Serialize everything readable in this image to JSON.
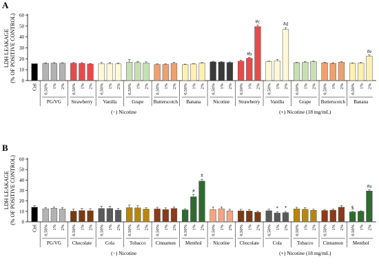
{
  "chart_data": [
    {
      "panel": "A",
      "type": "bar",
      "ylabel": [
        "LDH LEAKAGE",
        "(% OF POSITIVE CONTROL)"
      ],
      "ylim": [
        0,
        60
      ],
      "yticks": [
        0,
        10,
        20,
        30,
        40,
        50,
        60
      ],
      "grid": false,
      "groups": [
        {
          "label": "Ctrl",
          "color": "#000000",
          "doses": [
            ""
          ],
          "values": [
            15.5
          ],
          "errors": [
            0
          ],
          "annotations": [
            ""
          ]
        },
        {
          "label": "PG/VG",
          "color": "#b3b3b3",
          "doses": [
            "0.50%",
            "1%",
            "2%"
          ],
          "values": [
            15.8,
            15.9,
            15.9
          ],
          "errors": [
            0.5,
            0.5,
            0.5
          ],
          "annotations": [
            "",
            "",
            ""
          ]
        },
        {
          "label": "Strawberry",
          "color": "#e84a4a",
          "doses": [
            "0.50%",
            "1%",
            "2%"
          ],
          "values": [
            16.0,
            15.8,
            15.2
          ],
          "errors": [
            0.5,
            0.6,
            0.5
          ],
          "annotations": [
            "",
            "",
            ""
          ]
        },
        {
          "label": "Vanilla",
          "color": "#fff8d8",
          "doses": [
            "0.50%",
            "1%",
            "2%"
          ],
          "values": [
            15.4,
            15.5,
            15.3
          ],
          "errors": [
            1.2,
            1.0,
            0.8
          ],
          "annotations": [
            "",
            "",
            ""
          ]
        },
        {
          "label": "Grape",
          "color": "#c6e0b4",
          "doses": [
            "0.50%",
            "1%",
            "2%"
          ],
          "values": [
            16.8,
            16.5,
            16.2
          ],
          "errors": [
            2.5,
            1.0,
            1.0
          ],
          "annotations": [
            "",
            "",
            ""
          ]
        },
        {
          "label": "Butterscotch",
          "color": "#f0a070",
          "doses": [
            "0.50%",
            "1%",
            "2%"
          ],
          "values": [
            14.8,
            14.8,
            15.8
          ],
          "errors": [
            0.5,
            0.5,
            0.8
          ],
          "annotations": [
            "",
            "",
            ""
          ]
        },
        {
          "label": "Banana",
          "color": "#fdf0b0",
          "doses": [
            "0.50%",
            "1%",
            "2%"
          ],
          "values": [
            14.6,
            15.2,
            16.0
          ],
          "errors": [
            0.5,
            0.5,
            0.5
          ],
          "annotations": [
            "",
            "",
            ""
          ]
        },
        {
          "label": "Nicotine",
          "color": "#3a3a3a",
          "doses": [
            "0.50%",
            "1%",
            "2%"
          ],
          "values": [
            17.2,
            17.0,
            16.6
          ],
          "errors": [
            0.5,
            0.5,
            0.5
          ],
          "annotations": [
            "",
            "",
            ""
          ]
        },
        {
          "label": "Strawberry",
          "color": "#e84a4a",
          "doses": [
            "0.50%",
            "1%",
            "2%"
          ],
          "values": [
            17.8,
            20.5,
            49.5
          ],
          "errors": [
            1.0,
            0.8,
            1.5
          ],
          "annotations": [
            "",
            "#b",
            "#c"
          ]
        },
        {
          "label": "Vanilla",
          "color": "#fff8d8",
          "doses": [
            "0.50%",
            "1%",
            "2%"
          ],
          "values": [
            17.5,
            18.2,
            47.0
          ],
          "errors": [
            0.5,
            1.2,
            1.5
          ],
          "annotations": [
            "",
            "",
            "#d"
          ]
        },
        {
          "label": "Grape",
          "color": "#c6e0b4",
          "doses": [
            "0.50%",
            "1%",
            "2%"
          ],
          "values": [
            16.4,
            16.8,
            17.4
          ],
          "errors": [
            0.5,
            0.8,
            0.5
          ],
          "annotations": [
            "",
            "",
            ""
          ]
        },
        {
          "label": "Butterscotch",
          "color": "#f0a070",
          "doses": [
            "0.50%",
            "1%",
            "2%"
          ],
          "values": [
            16.3,
            15.8,
            16.8
          ],
          "errors": [
            0.5,
            0.5,
            0.8
          ],
          "annotations": [
            "",
            "",
            ""
          ]
        },
        {
          "label": "Banana",
          "color": "#fdf0b0",
          "doses": [
            "0.50%",
            "1%",
            "2%"
          ],
          "values": [
            15.8,
            16.0,
            22.5
          ],
          "errors": [
            0.5,
            0.5,
            1.0
          ],
          "annotations": [
            "",
            "",
            "#e"
          ]
        }
      ],
      "sections": [
        {
          "label": "(−) Nicotine",
          "from": 1,
          "to": 6
        },
        {
          "label": "(+) Nicotine  (18 mg/mL)",
          "from": 8,
          "to": 12
        }
      ]
    },
    {
      "panel": "B",
      "type": "bar",
      "ylabel": [
        "LDH LEAKAGE",
        "(% OF POSITIVE CONTROL)"
      ],
      "ylim": [
        0,
        60
      ],
      "yticks": [
        0,
        10,
        20,
        30,
        40,
        50,
        60
      ],
      "grid": false,
      "groups": [
        {
          "label": "Ctrl",
          "color": "#000000",
          "doses": [
            ""
          ],
          "values": [
            14.0
          ],
          "errors": [
            1.5
          ],
          "annotations": [
            ""
          ]
        },
        {
          "label": "PG/VG",
          "color": "#b3b3b3",
          "doses": [
            "0.50%",
            "1%",
            "2%"
          ],
          "values": [
            12.5,
            13.0,
            12.2
          ],
          "errors": [
            1.2,
            1.2,
            1.5
          ],
          "annotations": [
            "",
            "",
            ""
          ]
        },
        {
          "label": "Chocolate",
          "color": "#7a3a12",
          "doses": [
            "0.50%",
            "1%",
            "2%"
          ],
          "values": [
            10.2,
            10.8,
            10.6
          ],
          "errors": [
            2.0,
            2.0,
            2.0
          ],
          "annotations": [
            "",
            "",
            ""
          ]
        },
        {
          "label": "Cola",
          "color": "#595959",
          "doses": [
            "0.50%",
            "1%",
            "2%"
          ],
          "values": [
            12.8,
            12.8,
            11.2
          ],
          "errors": [
            2.0,
            2.0,
            1.5
          ],
          "annotations": [
            "",
            "",
            ""
          ]
        },
        {
          "label": "Tobacco",
          "color": "#b8860b",
          "doses": [
            "0.50%",
            "1%",
            "2%"
          ],
          "values": [
            13.5,
            13.3,
            12.2
          ],
          "errors": [
            2.5,
            2.0,
            1.5
          ],
          "annotations": [
            "",
            "",
            ""
          ]
        },
        {
          "label": "Cinnamon",
          "color": "#8b3a1a",
          "doses": [
            "0.50%",
            "1%",
            "2%"
          ],
          "values": [
            12.4,
            11.8,
            12.8
          ],
          "errors": [
            1.5,
            1.5,
            1.5
          ],
          "annotations": [
            "",
            "",
            ""
          ]
        },
        {
          "label": "Menthol",
          "color": "#2e6b2e",
          "doses": [
            "0.50%",
            "1%",
            "2%"
          ],
          "values": [
            11.5,
            24.0,
            39.0
          ],
          "errors": [
            1.0,
            2.0,
            1.8
          ],
          "annotations": [
            "",
            "#",
            "#"
          ]
        },
        {
          "label": "Nicotine",
          "color": "#f4a582",
          "doses": [
            "0.50%",
            "1%",
            "2%"
          ],
          "values": [
            11.8,
            12.5,
            10.5
          ],
          "errors": [
            2.5,
            1.8,
            1.5
          ],
          "annotations": [
            "",
            "",
            ""
          ]
        },
        {
          "label": "Chocolate",
          "color": "#7a3a12",
          "doses": [
            "0.50%",
            "1%",
            "2%"
          ],
          "values": [
            10.5,
            10.3,
            9.2
          ],
          "errors": [
            1.5,
            1.5,
            1.0
          ],
          "annotations": [
            "",
            "",
            ""
          ]
        },
        {
          "label": "Cola",
          "color": "#595959",
          "doses": [
            "0.50%",
            "1%",
            "2%"
          ],
          "values": [
            10.6,
            8.5,
            8.8
          ],
          "errors": [
            1.5,
            1.0,
            1.0
          ],
          "annotations": [
            "",
            "*",
            "*"
          ]
        },
        {
          "label": "Tobacco",
          "color": "#b8860b",
          "doses": [
            "0.50%",
            "1%",
            "2%"
          ],
          "values": [
            12.4,
            12.0,
            11.0
          ],
          "errors": [
            1.5,
            1.5,
            1.0
          ],
          "annotations": [
            "",
            "",
            ""
          ]
        },
        {
          "label": "Cinnamon",
          "color": "#8b3a1a",
          "doses": [
            "0.50%",
            "1%",
            "2%"
          ],
          "values": [
            10.8,
            11.2,
            14.0
          ],
          "errors": [
            1.0,
            1.0,
            1.5
          ],
          "annotations": [
            "",
            "",
            ""
          ]
        },
        {
          "label": "Menthol",
          "color": "#2e6b2e",
          "doses": [
            "0.50%",
            "1%",
            "2%"
          ],
          "values": [
            9.5,
            10.0,
            29.5
          ],
          "errors": [
            0.5,
            0.5,
            1.0
          ],
          "annotations": [
            "$",
            "",
            "#a"
          ]
        }
      ],
      "sections": [
        {
          "label": "(−) Nicotine",
          "from": 1,
          "to": 6
        },
        {
          "label": "(+) Nicotine  (18 mg/mL)",
          "from": 8,
          "to": 12
        }
      ]
    }
  ]
}
